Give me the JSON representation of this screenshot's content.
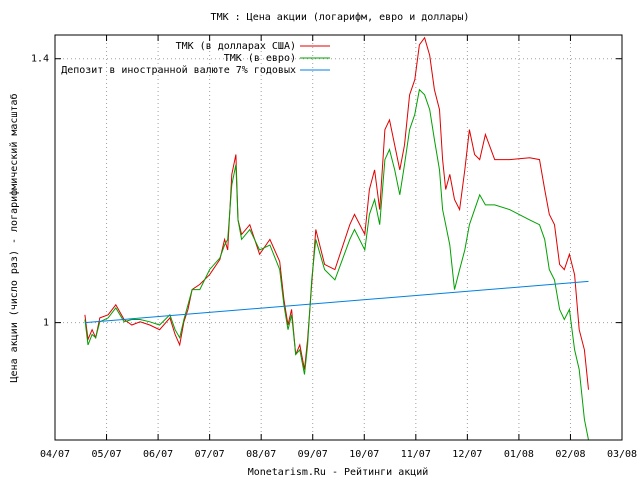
{
  "chart_data": {
    "type": "line",
    "title": "ТМК : Цена акции (логарифм, евро и доллары)",
    "x_label": "Monetarism.Ru - Рейтинги акций",
    "y_label": "Цена акции (число раз) - логарифмический масштаб",
    "log_y": true,
    "grid": true,
    "legend_position": "top",
    "xlim": [
      0,
      11
    ],
    "ylim": [
      0.861,
      1.443
    ],
    "xticks": [
      {
        "value": 0,
        "label": "04/07"
      },
      {
        "value": 1,
        "label": "05/07"
      },
      {
        "value": 2,
        "label": "06/07"
      },
      {
        "value": 3,
        "label": "07/07"
      },
      {
        "value": 4,
        "label": "08/07"
      },
      {
        "value": 5,
        "label": "09/07"
      },
      {
        "value": 6,
        "label": "10/07"
      },
      {
        "value": 7,
        "label": "11/07"
      },
      {
        "value": 8,
        "label": "12/07"
      },
      {
        "value": 9,
        "label": "01/08"
      },
      {
        "value": 10,
        "label": "02/08"
      },
      {
        "value": 11,
        "label": "03/08"
      }
    ],
    "yticks": [
      1,
      1.4
    ],
    "x": [
      0.58,
      0.64,
      0.72,
      0.79,
      0.87,
      1.03,
      1.18,
      1.34,
      1.49,
      1.65,
      1.84,
      2.03,
      2.23,
      2.33,
      2.42,
      2.5,
      2.58,
      2.66,
      2.81,
      3.0,
      3.2,
      3.29,
      3.35,
      3.43,
      3.51,
      3.55,
      3.62,
      3.78,
      3.97,
      4.17,
      4.36,
      4.44,
      4.52,
      4.59,
      4.67,
      4.75,
      4.84,
      4.9,
      4.98,
      5.06,
      5.23,
      5.43,
      5.72,
      5.81,
      6.01,
      6.1,
      6.2,
      6.3,
      6.4,
      6.49,
      6.59,
      6.69,
      6.78,
      6.88,
      6.98,
      7.07,
      7.17,
      7.27,
      7.36,
      7.46,
      7.52,
      7.58,
      7.66,
      7.75,
      7.85,
      7.95,
      8.04,
      8.14,
      8.24,
      8.35,
      8.53,
      8.82,
      9.21,
      9.4,
      9.5,
      9.59,
      9.69,
      9.79,
      9.88,
      9.98,
      10.08,
      10.17,
      10.27,
      10.35
    ],
    "series": [
      {
        "name": "ТМК (в долларах США)",
        "color": "#e00000",
        "values": [
          1.01,
          0.979,
          0.991,
          0.981,
          1.006,
          1.01,
          1.023,
          1.004,
          0.997,
          1.001,
          0.997,
          0.991,
          1.006,
          0.985,
          0.972,
          1.001,
          1.017,
          1.043,
          1.05,
          1.063,
          1.084,
          1.112,
          1.097,
          1.208,
          1.239,
          1.14,
          1.119,
          1.133,
          1.091,
          1.112,
          1.081,
          1.03,
          0.997,
          1.017,
          0.96,
          0.972,
          0.942,
          0.979,
          1.05,
          1.126,
          1.077,
          1.07,
          1.133,
          1.148,
          1.119,
          1.185,
          1.215,
          1.155,
          1.279,
          1.295,
          1.254,
          1.215,
          1.254,
          1.337,
          1.363,
          1.425,
          1.438,
          1.406,
          1.346,
          1.312,
          1.231,
          1.185,
          1.208,
          1.17,
          1.155,
          1.215,
          1.279,
          1.239,
          1.231,
          1.271,
          1.231,
          1.231,
          1.234,
          1.231,
          1.185,
          1.148,
          1.133,
          1.077,
          1.07,
          1.091,
          1.063,
          0.991,
          0.966,
          0.918
        ]
      },
      {
        "name": "ТМК (в евро)",
        "color": "#00a000",
        "values": [
          1.004,
          0.972,
          0.985,
          0.981,
          1.001,
          1.006,
          1.019,
          1.001,
          1.004,
          1.004,
          1.001,
          0.997,
          1.01,
          0.991,
          0.981,
          1.004,
          1.023,
          1.043,
          1.043,
          1.07,
          1.086,
          1.104,
          1.112,
          1.192,
          1.223,
          1.14,
          1.112,
          1.126,
          1.097,
          1.104,
          1.07,
          1.023,
          0.991,
          1.01,
          0.96,
          0.966,
          0.936,
          0.972,
          1.056,
          1.112,
          1.07,
          1.056,
          1.112,
          1.126,
          1.097,
          1.148,
          1.17,
          1.133,
          1.231,
          1.247,
          1.215,
          1.177,
          1.223,
          1.279,
          1.304,
          1.346,
          1.337,
          1.312,
          1.263,
          1.215,
          1.155,
          1.133,
          1.104,
          1.043,
          1.07,
          1.097,
          1.133,
          1.155,
          1.177,
          1.162,
          1.162,
          1.155,
          1.14,
          1.133,
          1.112,
          1.07,
          1.056,
          1.017,
          1.004,
          1.017,
          0.966,
          0.942,
          0.884,
          0.861
        ]
      },
      {
        "name": "Депозит в иностранной валюте 7% годовых",
        "color": "#0080e0",
        "x": [
          0.58,
          10.35
        ],
        "values": [
          1.0,
          1.054
        ]
      }
    ]
  }
}
